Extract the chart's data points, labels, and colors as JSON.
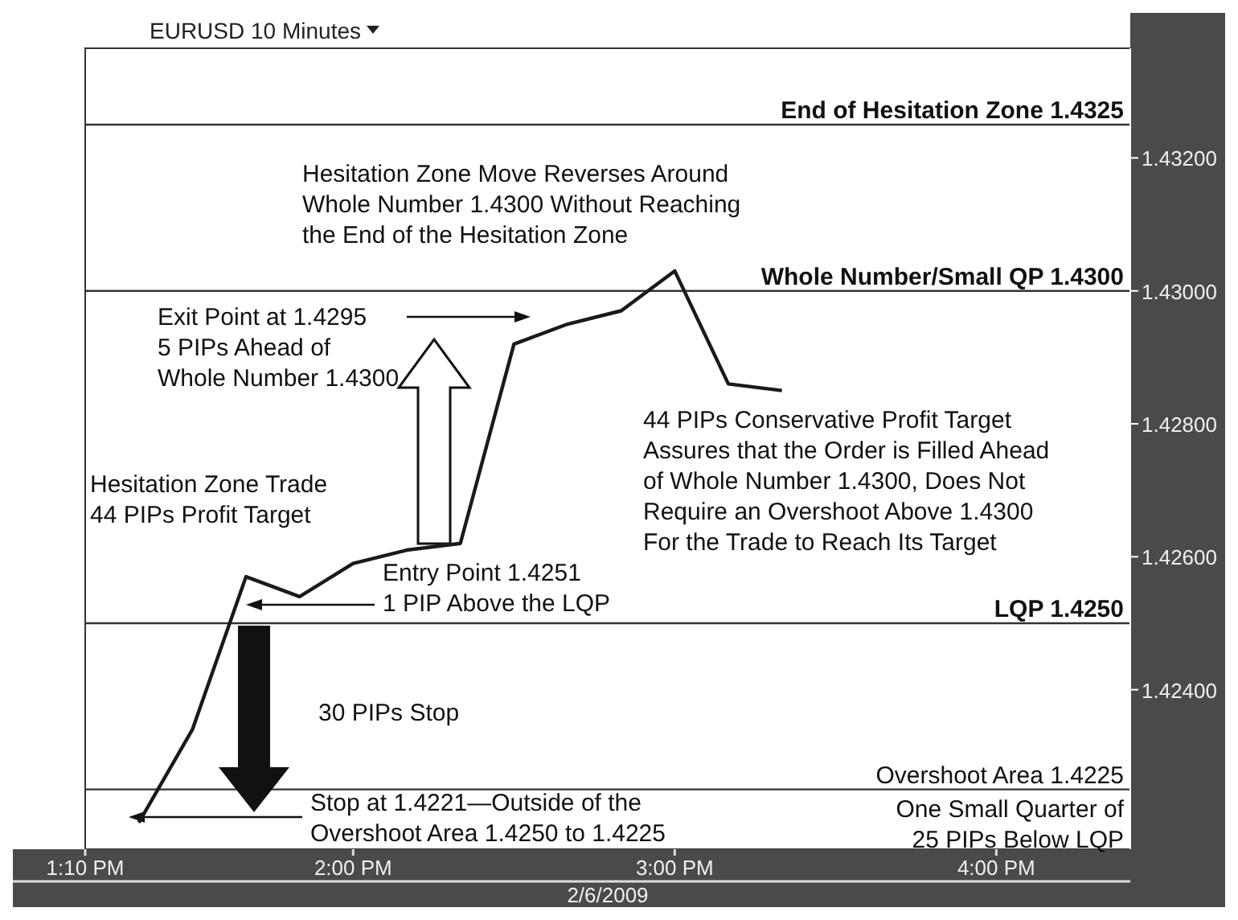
{
  "chart_data": {
    "type": "line",
    "title": "EURUSD 10 Minutes",
    "xlabel": "2/6/2009",
    "x": [
      "2009-02-06T13:20",
      "2009-02-06T13:30",
      "2009-02-06T13:40",
      "2009-02-06T13:50",
      "2009-02-06T14:00",
      "2009-02-06T14:10",
      "2009-02-06T14:20",
      "2009-02-06T14:30",
      "2009-02-06T14:40",
      "2009-02-06T14:50",
      "2009-02-06T15:00",
      "2009-02-06T15:10",
      "2009-02-06T15:20"
    ],
    "series": [
      {
        "color": "#1a1a1a",
        "values": [
          1.422,
          1.4234,
          1.4257,
          1.4254,
          1.4259,
          1.4261,
          1.4262,
          1.4292,
          1.4295,
          1.4297,
          1.4303,
          1.4286,
          1.4285
        ]
      }
    ],
    "xlim": [
      "2009-02-06T13:10",
      "2009-02-06T16:25"
    ],
    "xticks": [
      {
        "value": "2009-02-06T13:10",
        "label": "1:10 PM"
      },
      {
        "value": "2009-02-06T14:00",
        "label": "2:00 PM"
      },
      {
        "value": "2009-02-06T15:00",
        "label": "3:00 PM"
      },
      {
        "value": "2009-02-06T16:00",
        "label": "4:00 PM"
      }
    ],
    "ylim": [
      1.4216,
      1.43365
    ],
    "yticks": [
      {
        "value": 1.424,
        "label": "1.42400"
      },
      {
        "value": 1.426,
        "label": "1.42600"
      },
      {
        "value": 1.428,
        "label": "1.42800"
      },
      {
        "value": 1.43,
        "label": "1.43000"
      },
      {
        "value": 1.432,
        "label": "1.43200"
      }
    ],
    "ref_lines": [
      {
        "axis": "y",
        "value": 1.4325,
        "label": "End of Hesitation Zone 1.4325"
      },
      {
        "axis": "y",
        "value": 1.43,
        "label": "Whole Number/Small QP 1.4300"
      },
      {
        "axis": "y",
        "value": 1.425,
        "label": "LQP 1.4250"
      },
      {
        "axis": "y",
        "value": 1.4225,
        "label": "Overshoot Area 1.4225"
      }
    ],
    "annotations": [
      "Hesitation Zone Move Reverses Around\nWhole Number 1.4300 Without Reaching\nthe End of the Hesitation Zone",
      "Exit Point at 1.4295\n5 PIPs Ahead of\nWhole Number 1.4300",
      "Hesitation Zone Trade\n44 PIPs Profit Target",
      "Entry Point 1.4251\n1 PIP Above the LQP",
      "30 PIPs Stop",
      "Stop at 1.4221—Outside of the\nOvershoot Area 1.4250 to 1.4225",
      "44 PIPs Conservative Profit Target\nAssures that the Order is Filled Ahead\nof Whole Number 1.4300, Does Not\nRequire an Overshoot Above 1.4300\nFor the Trade to Reach Its Target",
      "One Small Quarter of\n25 PIPs Below LQP"
    ],
    "marker": "none",
    "line_style": "solid",
    "grid": false
  }
}
